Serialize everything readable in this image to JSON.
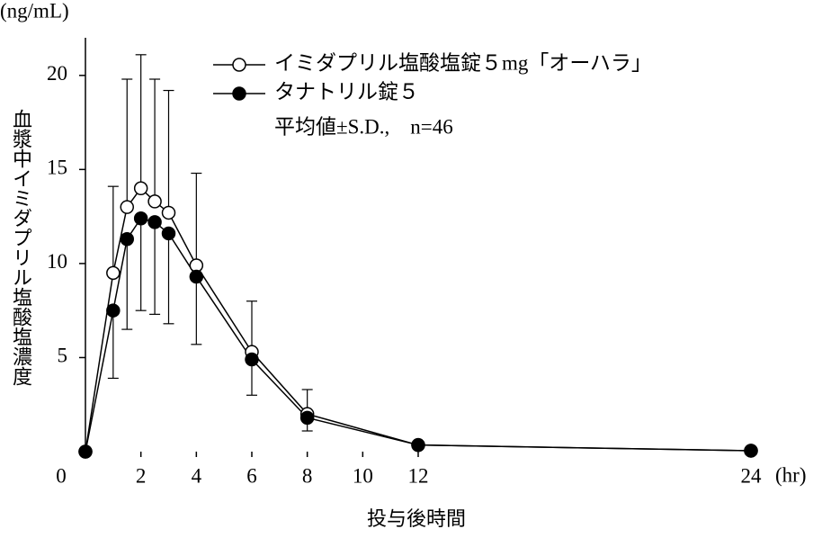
{
  "chart_data": {
    "type": "line",
    "y_unit": "(ng/mL)",
    "y_label": "血漿中イミダプリル塩酸塩濃度",
    "x_label": "投与後時間",
    "x_unit": "(hr)",
    "note": "平均値±S.D.,　n=46",
    "x": [
      0,
      1,
      1.5,
      2,
      2.5,
      3,
      4,
      6,
      8,
      12,
      24
    ],
    "xlim": [
      0,
      24
    ],
    "xticks": [
      0,
      2,
      4,
      6,
      8,
      10,
      12,
      24
    ],
    "ylim": [
      0,
      22
    ],
    "yticks": [
      5,
      10,
      15,
      20
    ],
    "series": [
      {
        "name": "イミダプリル塩酸塩錠５mg「オーハラ」",
        "color": "#ffffff",
        "error_direction": "up",
        "values": [
          0,
          9.5,
          13,
          14,
          13.3,
          12.7,
          9.9,
          5.3,
          2.0,
          0.35,
          0.05
        ],
        "errors": [
          null,
          4.6,
          6.8,
          7.1,
          6.5,
          6.5,
          4.9,
          2.7,
          1.3,
          null,
          null
        ]
      },
      {
        "name": "タナトリル錠５",
        "color": "#000000",
        "error_direction": "down",
        "values": [
          0,
          7.5,
          11.3,
          12.4,
          12.2,
          11.6,
          9.3,
          4.9,
          1.8,
          0.35,
          0.05
        ],
        "errors": [
          null,
          3.6,
          4.8,
          4.9,
          4.9,
          4.8,
          3.6,
          1.9,
          0.7,
          null,
          null
        ]
      }
    ]
  }
}
